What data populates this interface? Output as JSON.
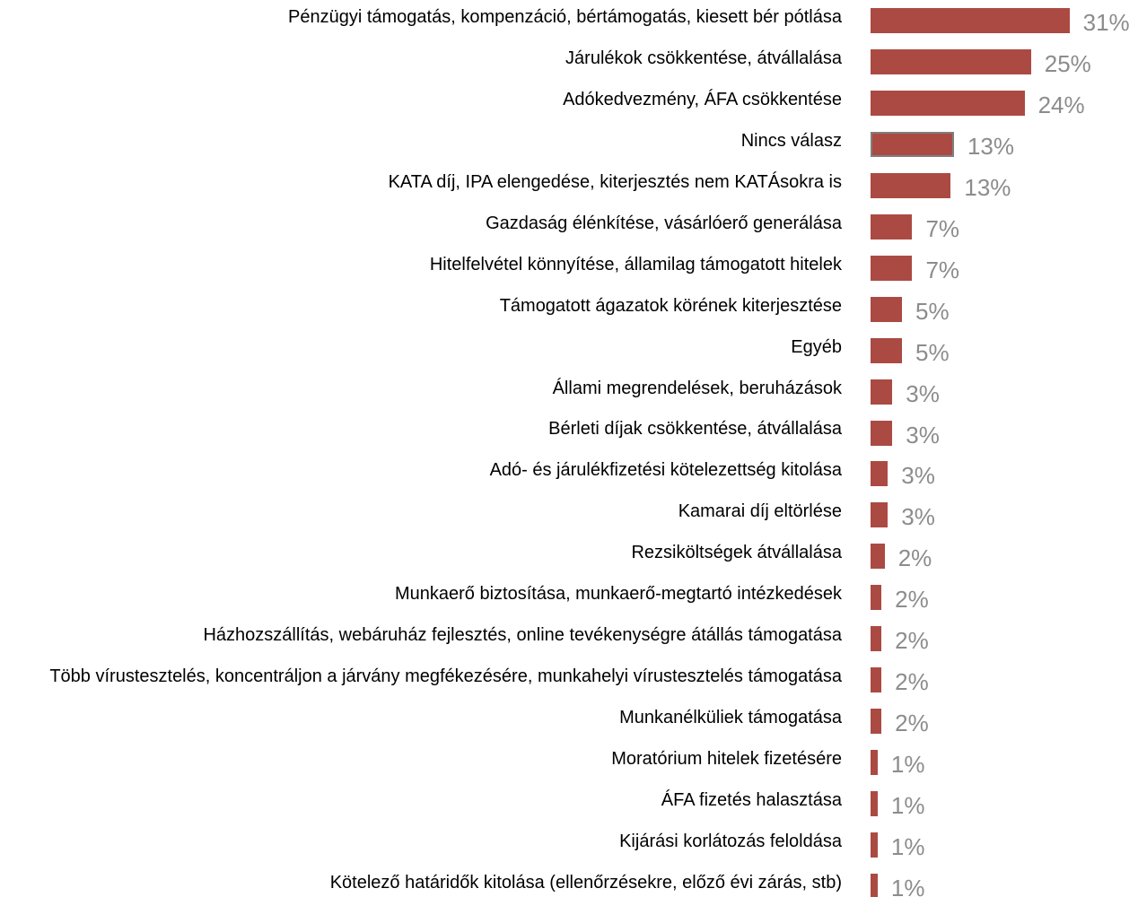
{
  "chart_data": {
    "type": "barh",
    "categories": [
      "Pénzügyi támogatás, kompenzáció, bértámogatás, kiesett bér pótlása",
      "Járulékok csökkentése, átvállalása",
      "Adókedvezmény, ÁFA csökkentése",
      "Nincs válasz",
      "KATA díj, IPA elengedése, kiterjesztés nem KATÁsokra is",
      "Gazdaság élénkítése, vásárlóerő generálása",
      "Hitelfelvétel könnyítése, államilag támogatott hitelek",
      "Támogatott ágazatok körének kiterjesztése",
      "Egyéb",
      "Állami megrendelések, beruházások",
      "Bérleti díjak csökkentése, átvállalása",
      "Adó- és járulékfizetési kötelezettség kitolása",
      "Kamarai díj eltörlése",
      "Rezsiköltségek átvállalása",
      "Munkaerő biztosítása, munkaerő-megtartó intézkedések",
      "Házhozszállítás, webáruház fejlesztés, online tevékenységre átállás támogatása",
      "Több vírustesztelés, koncentráljon a járvány megfékezésére, munkahelyi vírustesztelés támogatása",
      "Munkanélküliek támogatása",
      "Moratórium hitelek fizetésére",
      "ÁFA fizetés halasztása",
      "Kijárási korlátozás feloldása",
      "Kötelező határidők kitolása (ellenőrzésekre, előző évi zárás, stb)"
    ],
    "values": [
      31,
      25,
      24,
      13,
      12.5,
      6.5,
      6.5,
      4.9,
      4.9,
      3.4,
      3.4,
      2.7,
      2.7,
      2.2,
      1.7,
      1.7,
      1.7,
      1.7,
      1.1,
      1.1,
      1.1,
      1.1
    ],
    "value_labels": [
      "31%",
      "25%",
      "24%",
      "13%",
      "13%",
      "7%",
      "7%",
      "5%",
      "5%",
      "3%",
      "3%",
      "3%",
      "3%",
      "2%",
      "2%",
      "2%",
      "2%",
      "2%",
      "1%",
      "1%",
      "1%",
      "1%"
    ],
    "color": "#ab4a43",
    "edge_colors": [
      null,
      null,
      null,
      "#7f7f7f",
      null,
      null,
      null,
      null,
      null,
      null,
      null,
      null,
      null,
      null,
      null,
      null,
      null,
      null,
      null,
      null,
      null,
      null
    ],
    "xlim": [
      0,
      40
    ]
  }
}
